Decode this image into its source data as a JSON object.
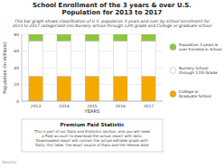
{
  "chart_data": {
    "type": "bar",
    "stacked": true,
    "title": "School Enrollment of the 3 years & over U.S.\nPopulation for 2013 to 2017",
    "subtitle": "This bar graph shows classification of U.S. population 3 years and over by school enrollment for\n2013 to 2017 categorized into Nursery school through 12th grade and College or graduate school",
    "x_label": "YEARS",
    "y_label": "Population (In millions)",
    "categories": [
      "2013",
      "2014",
      "2015",
      "2016",
      "2017"
    ],
    "series": [
      {
        "name": "College or\nGraduate School",
        "color": "#F5A800",
        "values": [
          30,
          30,
          30,
          30,
          30
        ]
      },
      {
        "name": "Nursery School\nthrough 12th Grade",
        "color": "#FFFFFF",
        "values": [
          42,
          42,
          42,
          42,
          42
        ]
      },
      {
        "name": "Population 3 years &\nover Enrolled in School",
        "color": "#8DC63F",
        "values": [
          8,
          8,
          8,
          8,
          8
        ]
      }
    ],
    "ylim": [
      0,
      80
    ],
    "yticks": [
      0,
      20,
      40,
      60,
      80
    ],
    "grid": true,
    "legend": "right",
    "annotations": [
      "Premium Paid Statistic",
      "This is part of our Data and Statistics section, and you will need\na Paid account to download the actual report with data.\nDownloaded report will contain the actual editable graph with\nData, this table, the exact source of Data and the release date",
      "Source:"
    ]
  }
}
